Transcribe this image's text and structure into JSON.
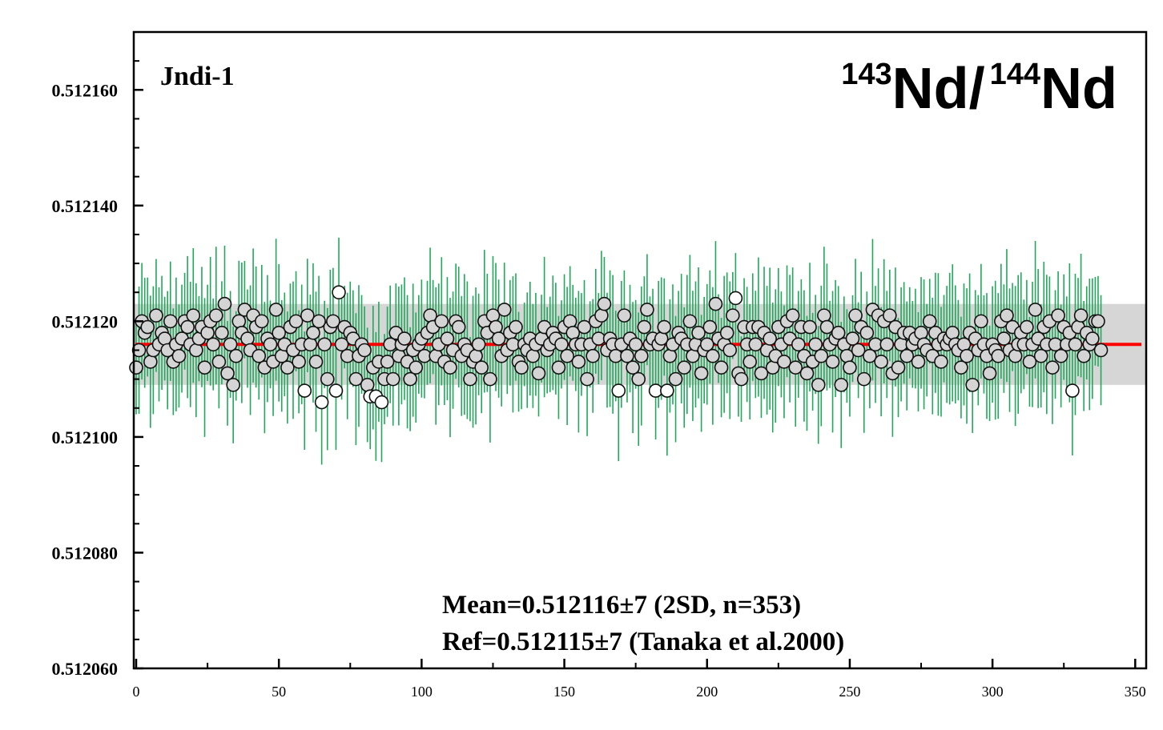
{
  "chart_data": {
    "type": "scatter",
    "title": "",
    "sample_label": "Jndi-1",
    "ratio_label": {
      "mass_a": "143",
      "element_a": "Nd/",
      "mass_b": "144",
      "element_b": "Nd"
    },
    "xlabel": "",
    "ylabel": "",
    "xlim": [
      0,
      353
    ],
    "ylim": [
      0.51206,
      0.51217
    ],
    "x_ticks": [
      "0",
      "50",
      "100",
      "150",
      "200",
      "250",
      "300",
      "350"
    ],
    "x_tick_values": [
      0,
      50,
      100,
      150,
      200,
      250,
      300,
      350
    ],
    "y_ticks": [
      "0.512060",
      "0.512080",
      "0.512100",
      "0.512120",
      "0.512140",
      "0.512160"
    ],
    "y_tick_values": [
      0.51206,
      0.51208,
      0.5121,
      0.51212,
      0.51214,
      0.51216
    ],
    "mean": 0.512116,
    "band": [
      0.512109,
      0.512123
    ],
    "error_half_width": 9.5e-06,
    "grid": false,
    "legend": "none",
    "annotations": [
      "Mean=0.512116±7 (2SD, n=353)",
      "Ref=0.512115±7 (Tanaka et al.2000)"
    ],
    "colors": {
      "error_bar": "#22a85a",
      "mean_line": "#ff0000",
      "band": "#d6d6d6",
      "marker_fill": "#d4d4d4",
      "marker_stroke": "#111111"
    },
    "series": [
      {
        "values": [
          0.512112,
          0.512115,
          0.51212,
          0.512118,
          0.512119,
          0.512113,
          0.512115,
          0.512121,
          0.512116,
          0.512118,
          0.512117,
          0.512115,
          0.51212,
          0.512113,
          0.512116,
          0.512114,
          0.512117,
          0.51212,
          0.512119,
          0.512116,
          0.512121,
          0.512115,
          0.512117,
          0.512119,
          0.512112,
          0.512118,
          0.51212,
          0.512116,
          0.512121,
          0.512113,
          0.512118,
          0.512123,
          0.512111,
          0.512116,
          0.512109,
          0.512114,
          0.51212,
          0.512118,
          0.512122,
          0.512117,
          0.512115,
          0.512121,
          0.512119,
          0.512114,
          0.51212,
          0.512112,
          0.512117,
          0.512116,
          0.512113,
          0.512122,
          0.512118,
          0.512114,
          0.512116,
          0.512112,
          0.512119,
          0.512115,
          0.51212,
          0.512113,
          0.512116,
          0.512108,
          0.512121,
          0.512116,
          0.512118,
          0.512113,
          0.51212,
          0.512106,
          0.512116,
          0.51211,
          0.512119,
          0.51212,
          0.512108,
          0.512125,
          0.512116,
          0.512119,
          0.512114,
          0.512118,
          0.512117,
          0.51211,
          0.512114,
          0.512116,
          0.512115,
          0.512109,
          0.512107,
          0.512112,
          0.512107,
          0.512113,
          0.512106,
          0.51211,
          0.512113,
          0.512116,
          0.51211,
          0.512118,
          0.512114,
          0.512116,
          0.512117,
          0.512113,
          0.51211,
          0.512115,
          0.512112,
          0.512116,
          0.512117,
          0.512114,
          0.512118,
          0.512121,
          0.512119,
          0.512114,
          0.512116,
          0.51212,
          0.512113,
          0.512117,
          0.512112,
          0.512115,
          0.51212,
          0.512119,
          0.512114,
          0.512116,
          0.512115,
          0.51211,
          0.512113,
          0.512114,
          0.512116,
          0.512112,
          0.51212,
          0.512118,
          0.51211,
          0.512121,
          0.512119,
          0.512117,
          0.512114,
          0.512122,
          0.512115,
          0.512118,
          0.512116,
          0.512119,
          0.512113,
          0.512112,
          0.512116,
          0.512115,
          0.512117,
          0.512114,
          0.512116,
          0.512111,
          0.512117,
          0.512119,
          0.512115,
          0.512116,
          0.512118,
          0.512117,
          0.512112,
          0.512116,
          0.512119,
          0.512114,
          0.51212,
          0.512118,
          0.512116,
          0.512113,
          0.512116,
          0.512119,
          0.51211,
          0.512116,
          0.512114,
          0.51212,
          0.512117,
          0.512121,
          0.512123,
          0.512115,
          0.512117,
          0.512116,
          0.512114,
          0.512108,
          0.512116,
          0.512121,
          0.512114,
          0.512117,
          0.512112,
          0.512116,
          0.51211,
          0.512114,
          0.512119,
          0.512122,
          0.512116,
          0.512117,
          0.512108,
          0.512116,
          0.512117,
          0.512119,
          0.512108,
          0.512114,
          0.512116,
          0.51211,
          0.512118,
          0.512117,
          0.512112,
          0.512116,
          0.51212,
          0.512114,
          0.512116,
          0.512118,
          0.512111,
          0.512115,
          0.512116,
          0.512119,
          0.512114,
          0.512123,
          0.512117,
          0.512112,
          0.512116,
          0.512118,
          0.512115,
          0.512121,
          0.512124,
          0.512111,
          0.51211,
          0.512119,
          0.512116,
          0.512113,
          0.512119,
          0.512116,
          0.512119,
          0.512111,
          0.512118,
          0.512115,
          0.512117,
          0.512112,
          0.512114,
          0.512119,
          0.512116,
          0.512113,
          0.51212,
          0.512117,
          0.512121,
          0.512112,
          0.512116,
          0.512119,
          0.512114,
          0.512111,
          0.512119,
          0.512113,
          0.512116,
          0.512109,
          0.512114,
          0.512121,
          0.512119,
          0.512116,
          0.512113,
          0.512117,
          0.512118,
          0.512109,
          0.512116,
          0.512114,
          0.512112,
          0.512117,
          0.512121,
          0.512115,
          0.512119,
          0.51211,
          0.512118,
          0.512114,
          0.512122,
          0.512116,
          0.512121,
          0.512113,
          0.51212,
          0.512116,
          0.512121,
          0.512111,
          0.512119,
          0.512112,
          0.512116,
          0.512118,
          0.512114,
          0.512118,
          0.512116,
          0.512117,
          0.512113,
          0.512118,
          0.512116,
          0.512115,
          0.51212,
          0.512114,
          0.512118,
          0.512116,
          0.512113,
          0.512117,
          0.512116,
          0.512117,
          0.512118,
          0.512116,
          0.512115,
          0.512112,
          0.512116,
          0.512114,
          0.512118,
          0.512109,
          0.512117,
          0.512115,
          0.51212,
          0.512116,
          0.512114,
          0.512111,
          0.512116,
          0.512115,
          0.512114,
          0.51212,
          0.512117,
          0.512121,
          0.512115,
          0.512119,
          0.512114,
          0.512116,
          0.512118,
          0.512116,
          0.512119,
          0.512113,
          0.512116,
          0.512122,
          0.512117,
          0.512114,
          0.512119,
          0.512116,
          0.51212,
          0.512112,
          0.512116,
          0.512121,
          0.512114,
          0.512119,
          0.512116,
          0.512118,
          0.512108,
          0.512116,
          0.512119,
          0.512121,
          0.512114,
          0.512118,
          0.512116,
          0.512117,
          0.51212,
          0.51212,
          0.512115
        ],
        "color": "#d4d4d4"
      }
    ]
  }
}
